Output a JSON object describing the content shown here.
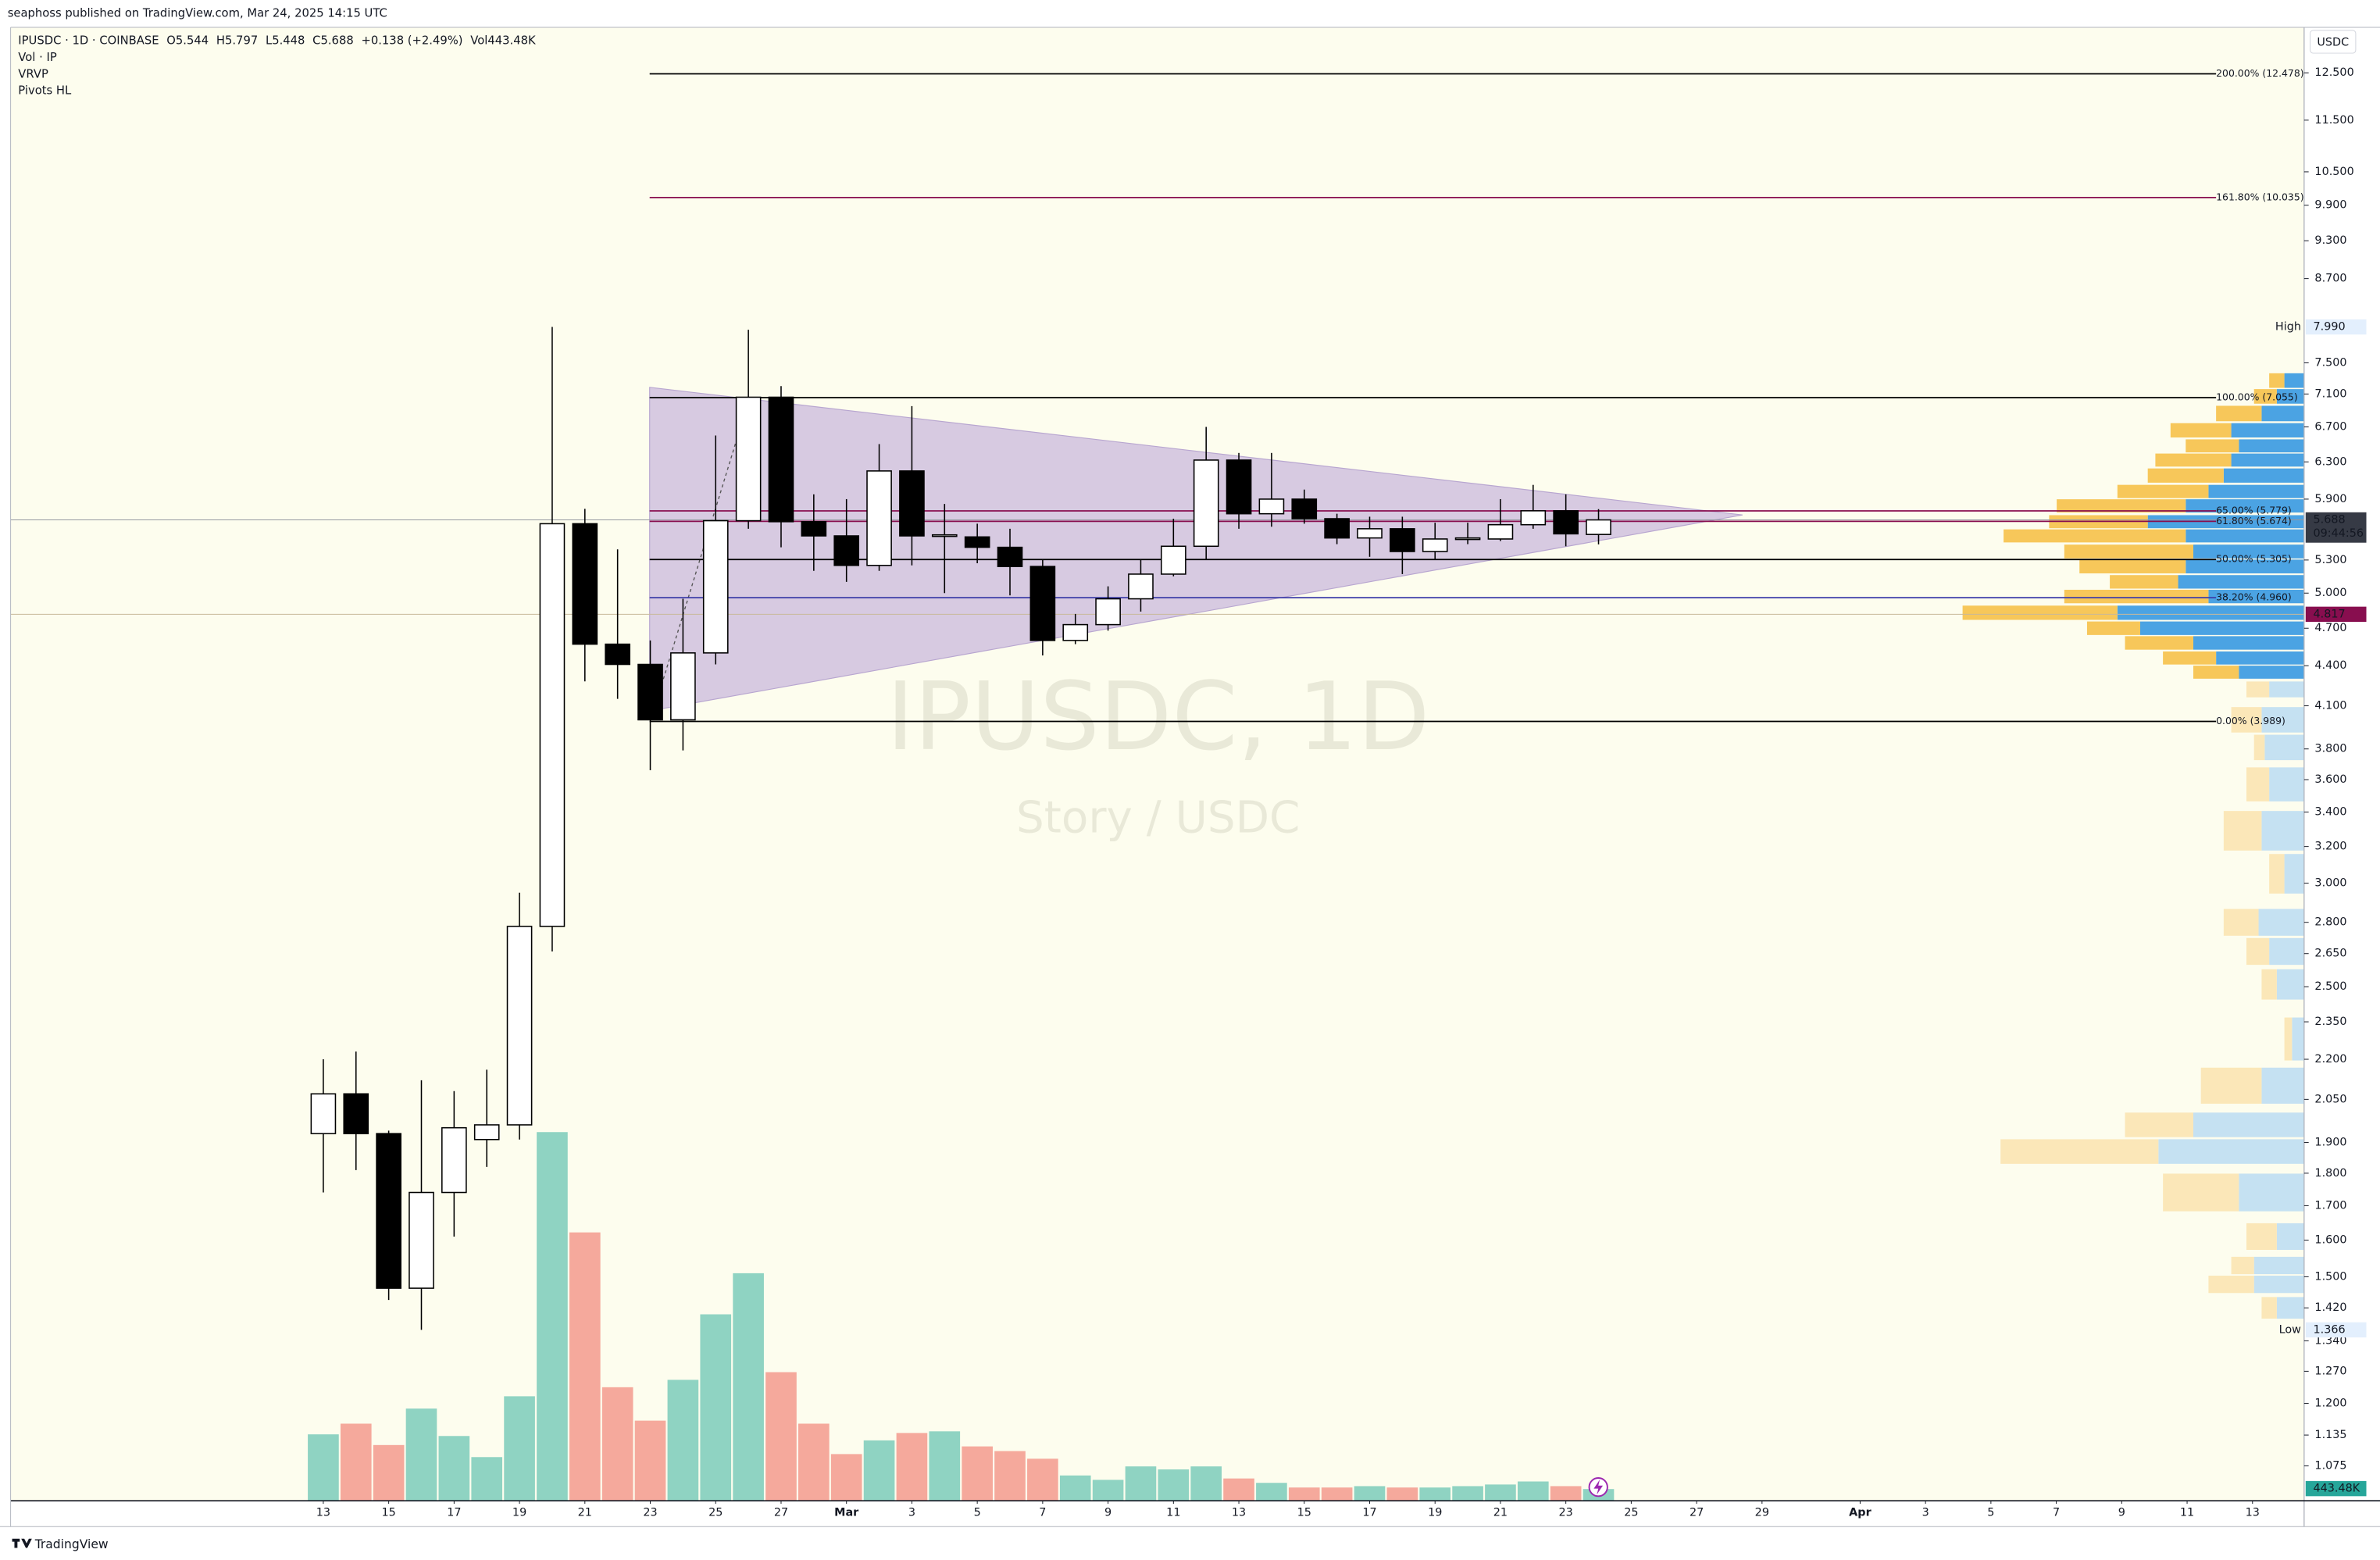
{
  "header": {
    "published": "seaphoss published on TradingView.com, Mar 24, 2025 14:15 UTC",
    "symbol": "IPUSDC · 1D · COINBASE",
    "ohlc": [
      "O5.544",
      "H5.797",
      "L5.448",
      "C5.688",
      "+0.138 (+2.49%)",
      "Vol443.48K"
    ],
    "indicators": [
      "Vol · IP",
      "VRVP",
      "Pivots HL"
    ],
    "watermark": "IPUSDC, 1D",
    "watermark_sub": "Story / USDC",
    "currency": "USDC",
    "footer": "TradingView"
  },
  "chart_data": {
    "type": "candlestick",
    "categories": [
      "13",
      null,
      "15",
      null,
      "17",
      null,
      "19",
      null,
      "21",
      null,
      "23",
      null,
      "25",
      null,
      "27",
      null,
      "Mar",
      null,
      "3",
      null,
      "5",
      null,
      "7",
      null,
      "9",
      null,
      "11",
      null,
      "13",
      null,
      "15",
      null,
      "17",
      null,
      "19",
      null,
      "21",
      null,
      "23",
      null,
      "25",
      null,
      "27",
      null,
      "29",
      null,
      null,
      "Apr",
      null,
      "3",
      null,
      "5",
      null,
      "7",
      null,
      "9",
      null,
      "11",
      null,
      "13"
    ],
    "open": [
      1.93,
      2.07,
      1.93,
      1.47,
      1.74,
      1.91,
      1.96,
      2.78,
      5.65,
      4.57,
      4.41,
      4.0,
      4.5,
      5.68,
      7.06,
      5.67,
      5.53,
      5.25,
      6.2,
      5.53,
      5.52,
      5.42,
      5.24,
      4.6,
      4.73,
      4.95,
      5.17,
      5.43,
      6.32,
      5.75,
      5.9,
      5.7,
      5.51,
      5.6,
      5.38,
      5.5,
      5.5,
      5.64,
      5.78,
      5.544,
      null,
      null,
      null,
      null,
      null,
      null,
      null,
      null,
      null,
      null,
      null,
      null,
      null,
      null,
      null,
      null,
      null,
      null,
      null,
      null
    ],
    "high": [
      2.2,
      2.23,
      1.94,
      2.12,
      2.08,
      2.16,
      2.95,
      7.99,
      5.8,
      5.4,
      4.6,
      4.95,
      6.6,
      7.95,
      7.2,
      5.95,
      5.9,
      6.5,
      6.95,
      5.85,
      5.65,
      5.6,
      5.3,
      4.82,
      5.06,
      5.3,
      5.7,
      6.7,
      6.4,
      6.4,
      6.0,
      5.75,
      5.72,
      5.72,
      5.66,
      5.66,
      5.9,
      6.05,
      5.95,
      5.797,
      null,
      null,
      null,
      null,
      null,
      null,
      null,
      null,
      null,
      null,
      null,
      null,
      null,
      null,
      null,
      null,
      null,
      null,
      null,
      null
    ],
    "low": [
      1.74,
      1.81,
      1.44,
      1.366,
      1.61,
      1.82,
      1.91,
      2.66,
      4.28,
      4.15,
      3.66,
      3.79,
      4.41,
      5.6,
      5.42,
      5.2,
      5.1,
      5.2,
      5.25,
      5.0,
      5.27,
      4.98,
      4.48,
      4.57,
      4.68,
      4.84,
      5.15,
      5.3,
      5.6,
      5.62,
      5.65,
      5.45,
      5.33,
      5.17,
      5.3,
      5.45,
      5.48,
      5.6,
      5.43,
      5.448,
      null,
      null,
      null,
      null,
      null,
      null,
      null,
      null,
      null,
      null,
      null,
      null,
      null,
      null,
      null,
      null,
      null,
      null,
      null,
      null
    ],
    "close": [
      2.07,
      1.93,
      1.47,
      1.74,
      1.95,
      1.96,
      2.78,
      5.65,
      4.57,
      4.41,
      4.0,
      4.5,
      5.68,
      7.06,
      5.67,
      5.53,
      5.25,
      6.2,
      5.53,
      5.54,
      5.42,
      5.24,
      4.6,
      4.73,
      4.95,
      5.17,
      5.43,
      6.32,
      5.75,
      5.9,
      5.7,
      5.51,
      5.6,
      5.38,
      5.5,
      5.51,
      5.64,
      5.78,
      5.55,
      5.688,
      null,
      null,
      null,
      null,
      null,
      null,
      null,
      null,
      null,
      null,
      null,
      null,
      null,
      null,
      null,
      null,
      null,
      null,
      null,
      null
    ],
    "volume": [
      2440000,
      2830000,
      2050000,
      3380000,
      2380000,
      1610000,
      3830000,
      13470000,
      9810000,
      4160000,
      2940000,
      4430000,
      6820000,
      8320000,
      4710000,
      2830000,
      1720000,
      2220000,
      2490000,
      2550000,
      2000000,
      1830000,
      1550000,
      940000,
      780000,
      1270000,
      1160000,
      1270000,
      830000,
      670000,
      500000,
      500000,
      550000,
      500000,
      500000,
      550000,
      610000,
      720000,
      550000,
      443480,
      null,
      null,
      null,
      null,
      null,
      null,
      null,
      null,
      null,
      null,
      null,
      null,
      null,
      null,
      null,
      null,
      null,
      null,
      null,
      null
    ],
    "volume_last_label": "443.48K",
    "up_color": "#ffffff",
    "down_color": "#000000",
    "volume_up_color": "#8fd3c2",
    "volume_down_color": "#f5a99c",
    "log_scale": true,
    "ylim": [
      1.011,
      13.47
    ],
    "yticks": [
      {
        "value": 12.5,
        "label": "12.500"
      },
      {
        "value": 11.5,
        "label": "11.500"
      },
      {
        "value": 10.5,
        "label": "10.500"
      },
      {
        "value": 9.9,
        "label": "9.900"
      },
      {
        "value": 9.3,
        "label": "9.300"
      },
      {
        "value": 8.7,
        "label": "8.700"
      },
      {
        "value": 7.5,
        "label": "7.500"
      },
      {
        "value": 7.1,
        "label": "7.100"
      },
      {
        "value": 6.7,
        "label": "6.700"
      },
      {
        "value": 6.3,
        "label": "6.300"
      },
      {
        "value": 5.9,
        "label": "5.900"
      },
      {
        "value": 5.3,
        "label": "5.300"
      },
      {
        "value": 5.0,
        "label": "5.000"
      },
      {
        "value": 4.7,
        "label": "4.700"
      },
      {
        "value": 4.4,
        "label": "4.400"
      },
      {
        "value": 4.1,
        "label": "4.100"
      },
      {
        "value": 3.8,
        "label": "3.800"
      },
      {
        "value": 3.6,
        "label": "3.600"
      },
      {
        "value": 3.4,
        "label": "3.400"
      },
      {
        "value": 3.2,
        "label": "3.200"
      },
      {
        "value": 3.0,
        "label": "3.000"
      },
      {
        "value": 2.8,
        "label": "2.800"
      },
      {
        "value": 2.65,
        "label": "2.650"
      },
      {
        "value": 2.5,
        "label": "2.500"
      },
      {
        "value": 2.35,
        "label": "2.350"
      },
      {
        "value": 2.2,
        "label": "2.200"
      },
      {
        "value": 2.05,
        "label": "2.050"
      },
      {
        "value": 1.9,
        "label": "1.900"
      },
      {
        "value": 1.8,
        "label": "1.800"
      },
      {
        "value": 1.7,
        "label": "1.700"
      },
      {
        "value": 1.6,
        "label": "1.600"
      },
      {
        "value": 1.5,
        "label": "1.500"
      },
      {
        "value": 1.42,
        "label": "1.420"
      },
      {
        "value": 1.34,
        "label": "1.340"
      },
      {
        "value": 1.27,
        "label": "1.270"
      },
      {
        "value": 1.2,
        "label": "1.200"
      },
      {
        "value": 1.135,
        "label": "1.135"
      },
      {
        "value": 1.075,
        "label": "1.075"
      }
    ],
    "fib_levels": [
      {
        "label": "200.00% (12.478)",
        "price": 12.478,
        "color": "#000000"
      },
      {
        "label": "161.80% (10.035)",
        "price": 10.035,
        "color": "#880e4f"
      },
      {
        "label": "100.00% (7.055)",
        "price": 7.055,
        "color": "#000000"
      },
      {
        "label": "65.00% (5.779)",
        "price": 5.779,
        "color": "#880e4f"
      },
      {
        "label": "61.80% (5.674)",
        "price": 5.674,
        "color": "#880e4f"
      },
      {
        "label": "50.00% (5.305)",
        "price": 5.305,
        "color": "#000000"
      },
      {
        "label": "38.20% (4.960)",
        "price": 4.96,
        "color": "#3c3ca8"
      },
      {
        "label": "0.00% (3.989)",
        "price": 3.989,
        "color": "#000000"
      }
    ],
    "high_marker": {
      "label": "High",
      "value": 7.99,
      "value_label": "7.990"
    },
    "low_marker": {
      "label": "Low",
      "value": 1.366,
      "value_label": "1.366"
    },
    "countdown": "09:44:56",
    "marker_price": 4.817,
    "marker_color": "#880e4f",
    "volume_profile_colors": {
      "up": "#4ba3e3",
      "down": "#f7c75a",
      "up_outside": "#c5e1f2",
      "down_outside": "#fbe7b8"
    },
    "volume_profile": [
      {
        "price": 7.27,
        "up": 13,
        "down": 10,
        "va": true
      },
      {
        "price": 7.07,
        "up": 18,
        "down": 15,
        "va": true
      },
      {
        "price": 6.86,
        "up": 28,
        "down": 30,
        "va": true
      },
      {
        "price": 6.66,
        "up": 48,
        "down": 40,
        "va": true
      },
      {
        "price": 6.48,
        "up": 43,
        "down": 35,
        "va": true
      },
      {
        "price": 6.32,
        "up": 48,
        "down": 50,
        "va": true
      },
      {
        "price": 6.15,
        "up": 53,
        "down": 50,
        "va": true
      },
      {
        "price": 5.98,
        "up": 63,
        "down": 60,
        "va": true
      },
      {
        "price": 5.83,
        "up": 78,
        "down": 85,
        "va": true
      },
      {
        "price": 5.67,
        "up": 103,
        "down": 65,
        "va": true
      },
      {
        "price": 5.53,
        "up": 78,
        "down": 120,
        "va": true
      },
      {
        "price": 5.38,
        "up": 73,
        "down": 85,
        "va": true
      },
      {
        "price": 5.24,
        "up": 78,
        "down": 70,
        "va": true
      },
      {
        "price": 5.1,
        "up": 83,
        "down": 45,
        "va": true
      },
      {
        "price": 4.97,
        "up": 63,
        "down": 95,
        "va": true
      },
      {
        "price": 4.83,
        "up": 123,
        "down": 102,
        "va": true
      },
      {
        "price": 4.7,
        "up": 108,
        "down": 35,
        "va": true
      },
      {
        "price": 4.58,
        "up": 73,
        "down": 45,
        "va": true
      },
      {
        "price": 4.46,
        "up": 58,
        "down": 35,
        "va": true
      },
      {
        "price": 4.35,
        "up": 43,
        "down": 30,
        "va": true
      },
      {
        "price": 4.22,
        "up": 23,
        "down": 15,
        "va": false
      },
      {
        "price": 4.0,
        "up": 28,
        "down": 20,
        "va": false
      },
      {
        "price": 3.81,
        "up": 26,
        "down": 7,
        "va": false
      },
      {
        "price": 3.57,
        "up": 23,
        "down": 15,
        "va": false
      },
      {
        "price": 3.29,
        "up": 28,
        "down": 25,
        "va": false
      },
      {
        "price": 3.05,
        "up": 13,
        "down": 10,
        "va": false
      },
      {
        "price": 2.8,
        "up": 30,
        "down": 23,
        "va": false
      },
      {
        "price": 2.66,
        "up": 23,
        "down": 15,
        "va": false
      },
      {
        "price": 2.51,
        "up": 18,
        "down": 10,
        "va": false
      },
      {
        "price": 2.28,
        "up": 8,
        "down": 5,
        "va": false
      },
      {
        "price": 2.1,
        "up": 28,
        "down": 40,
        "va": false
      },
      {
        "price": 1.96,
        "up": 73,
        "down": 45,
        "va": false
      },
      {
        "price": 1.87,
        "up": 96,
        "down": 104,
        "va": false
      },
      {
        "price": 1.74,
        "up": 43,
        "down": 50,
        "va": false
      },
      {
        "price": 1.61,
        "up": 18,
        "down": 20,
        "va": false
      },
      {
        "price": 1.53,
        "up": 33,
        "down": 15,
        "va": false
      },
      {
        "price": 1.48,
        "up": 33,
        "down": 30,
        "va": false
      },
      {
        "price": 1.42,
        "up": 18,
        "down": 10,
        "va": false
      }
    ]
  }
}
